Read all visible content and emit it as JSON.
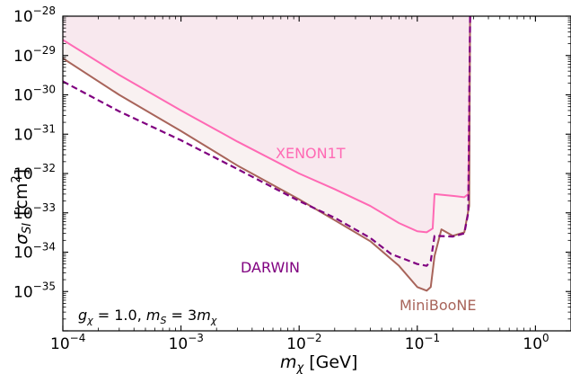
{
  "chart_data": {
    "type": "line",
    "xscale": "log",
    "yscale": "log",
    "xlim": [
      0.0001,
      2
    ],
    "ylim": [
      1e-36,
      1e-28
    ],
    "xlabel_base": "m",
    "xlabel_sub": "χ",
    "xlabel_unit": "[GeV]",
    "ylabel_base": "σ",
    "ylabel_sub": "SI",
    "ylabel_unit_pre": "[cm",
    "ylabel_unit_sup": "2",
    "ylabel_unit_post": "]",
    "x_ticks": [
      {
        "value": 0.0001,
        "base": "10",
        "exp": "−4"
      },
      {
        "value": 0.001,
        "base": "10",
        "exp": "−3"
      },
      {
        "value": 0.01,
        "base": "10",
        "exp": "−2"
      },
      {
        "value": 0.1,
        "base": "10",
        "exp": "−1"
      },
      {
        "value": 1,
        "base": "10",
        "exp": "0"
      }
    ],
    "y_ticks": [
      {
        "value": 1e-28,
        "base": "10",
        "exp": "−28"
      },
      {
        "value": 1e-29,
        "base": "10",
        "exp": "−29"
      },
      {
        "value": 1e-30,
        "base": "10",
        "exp": "−30"
      },
      {
        "value": 1e-31,
        "base": "10",
        "exp": "−31"
      },
      {
        "value": 1e-32,
        "base": "10",
        "exp": "−32"
      },
      {
        "value": 1e-33,
        "base": "10",
        "exp": "−33"
      },
      {
        "value": 1e-34,
        "base": "10",
        "exp": "−34"
      },
      {
        "value": 1e-35,
        "base": "10",
        "exp": "−35"
      }
    ],
    "series": [
      {
        "name": "XENON1T",
        "color": "#ff69b4",
        "fill": "#f8e8ee",
        "dash": "solid",
        "points": [
          [
            0.0001,
            2.5e-29
          ],
          [
            0.0003,
            3.2e-30
          ],
          [
            0.001,
            4e-31
          ],
          [
            0.003,
            6.5e-32
          ],
          [
            0.01,
            1e-32
          ],
          [
            0.02,
            4e-33
          ],
          [
            0.04,
            1.5e-33
          ],
          [
            0.07,
            5.5e-34
          ],
          [
            0.1,
            3.4e-34
          ],
          [
            0.12,
            3.2e-34
          ],
          [
            0.135,
            4e-34
          ],
          [
            0.14,
            3e-33
          ],
          [
            0.2,
            2.7e-33
          ],
          [
            0.25,
            2.5e-33
          ],
          [
            0.27,
            3e-33
          ],
          [
            0.28,
            1e-28
          ]
        ]
      },
      {
        "name": "MiniBooNE",
        "color": "#a8645a",
        "fill": "#f9f1f1",
        "dash": "solid",
        "points": [
          [
            0.0001,
            8.5e-30
          ],
          [
            0.0003,
            1e-30
          ],
          [
            0.001,
            1.2e-31
          ],
          [
            0.003,
            1.6e-32
          ],
          [
            0.01,
            2.2e-33
          ],
          [
            0.02,
            6.5e-34
          ],
          [
            0.04,
            1.9e-34
          ],
          [
            0.07,
            4.5e-35
          ],
          [
            0.1,
            1.3e-35
          ],
          [
            0.12,
            1.05e-35
          ],
          [
            0.13,
            1.3e-35
          ],
          [
            0.14,
            8e-35
          ],
          [
            0.16,
            3.8e-34
          ],
          [
            0.2,
            2.6e-34
          ],
          [
            0.25,
            3.2e-34
          ],
          [
            0.275,
            1.5e-33
          ],
          [
            0.28,
            1e-28
          ]
        ]
      },
      {
        "name": "DARWIN",
        "color": "#800080",
        "fill": "",
        "dash": "dashed",
        "points": [
          [
            0.0001,
            2.2e-30
          ],
          [
            0.0003,
            3.8e-31
          ],
          [
            0.001,
            7e-32
          ],
          [
            0.003,
            1.3e-32
          ],
          [
            0.01,
            2e-33
          ],
          [
            0.02,
            7.5e-34
          ],
          [
            0.04,
            2.3e-34
          ],
          [
            0.06,
            9e-35
          ],
          [
            0.1,
            5e-35
          ],
          [
            0.12,
            4.5e-35
          ],
          [
            0.13,
            6e-35
          ],
          [
            0.14,
            2.6e-34
          ],
          [
            0.2,
            2.5e-34
          ],
          [
            0.25,
            3e-34
          ],
          [
            0.27,
            1e-33
          ],
          [
            0.28,
            1e-28
          ]
        ]
      }
    ],
    "annotation": {
      "g_base": "g",
      "g_sub": "χ",
      "g_value": " = 1.0, ",
      "m_base": "m",
      "m_sub": "S",
      "m_eq": " = 3",
      "m2_base": "m",
      "m2_sub": "χ"
    }
  }
}
